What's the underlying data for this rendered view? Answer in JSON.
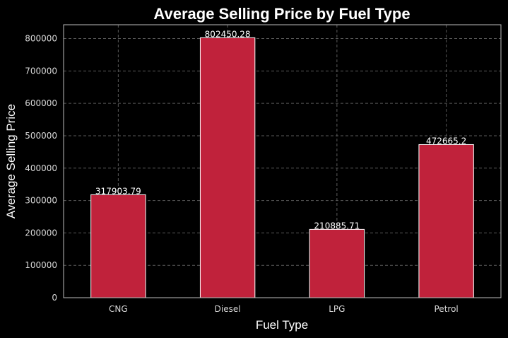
{
  "chart_data": {
    "type": "bar",
    "title": "Average Selling Price by Fuel Type",
    "xlabel": "Fuel Type",
    "ylabel": "Average Selling Price",
    "categories": [
      "CNG",
      "Diesel",
      "LPG",
      "Petrol"
    ],
    "values": [
      317903.79,
      802450.28,
      210885.71,
      472665.2
    ],
    "value_labels": [
      "317903.79",
      "802450.28",
      "210885.71",
      "472665.2"
    ],
    "ylim": [
      0,
      842572.79
    ],
    "yticks": [
      0,
      100000,
      200000,
      300000,
      400000,
      500000,
      600000,
      700000,
      800000
    ],
    "grid": true,
    "bar_color": "#c0223b",
    "bar_edge_color": "#ffffff",
    "background_color": "#000000"
  }
}
